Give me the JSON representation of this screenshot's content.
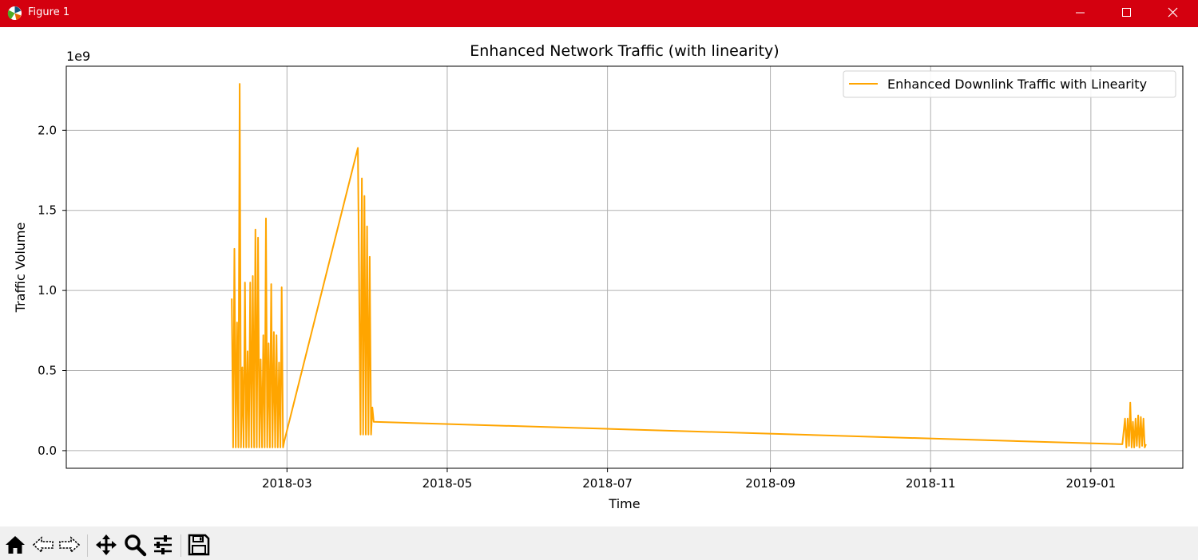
{
  "window": {
    "title": "Figure 1",
    "colors": {
      "titlebar": "#d4000f",
      "toolbar": "#f0f0f0"
    }
  },
  "toolbar": {
    "buttons": [
      {
        "name": "home-button",
        "icon": "home-icon"
      },
      {
        "name": "back-button",
        "icon": "back-arrow-icon"
      },
      {
        "name": "forward-button",
        "icon": "forward-arrow-icon"
      },
      {
        "name": "pan-button",
        "icon": "move-icon"
      },
      {
        "name": "zoom-button",
        "icon": "magnifier-icon"
      },
      {
        "name": "configure-subplots-button",
        "icon": "sliders-icon"
      },
      {
        "name": "save-button",
        "icon": "floppy-disk-icon"
      }
    ]
  },
  "chart_data": {
    "type": "line",
    "title": "Enhanced Network Traffic (with linearity)",
    "xlabel": "Time",
    "ylabel": "Traffic Volume",
    "y_offset_label": "1e9",
    "xlim": [
      "2017-12-07",
      "2019-02-05"
    ],
    "ylim": [
      -0.11,
      2.4
    ],
    "x_ticks": [
      {
        "date": "2018-03-01",
        "label": "2018-03"
      },
      {
        "date": "2018-05-01",
        "label": "2018-05"
      },
      {
        "date": "2018-07-01",
        "label": "2018-07"
      },
      {
        "date": "2018-09-01",
        "label": "2018-09"
      },
      {
        "date": "2018-11-01",
        "label": "2018-11"
      },
      {
        "date": "2019-01-01",
        "label": "2019-01"
      }
    ],
    "y_ticks": [
      {
        "value": 0.0,
        "label": "0.0"
      },
      {
        "value": 0.5,
        "label": "0.5"
      },
      {
        "value": 1.0,
        "label": "1.0"
      },
      {
        "value": 1.5,
        "label": "1.5"
      },
      {
        "value": 2.0,
        "label": "2.0"
      }
    ],
    "grid": true,
    "legend_position": "upper right",
    "series": [
      {
        "name": "Enhanced Downlink Traffic with Linearity",
        "color": "#ffa500",
        "x": [
          "2018-02-08",
          "2018-02-08",
          "2018-02-09",
          "2018-02-09",
          "2018-02-10",
          "2018-02-10",
          "2018-02-11",
          "2018-02-11",
          "2018-02-12",
          "2018-02-12",
          "2018-02-13",
          "2018-02-13",
          "2018-02-14",
          "2018-02-14",
          "2018-02-15",
          "2018-02-15",
          "2018-02-16",
          "2018-02-16",
          "2018-02-17",
          "2018-02-17",
          "2018-02-18",
          "2018-02-18",
          "2018-02-19",
          "2018-02-19",
          "2018-02-20",
          "2018-02-20",
          "2018-02-21",
          "2018-02-21",
          "2018-02-22",
          "2018-02-22",
          "2018-02-23",
          "2018-02-23",
          "2018-02-24",
          "2018-02-24",
          "2018-02-25",
          "2018-02-25",
          "2018-02-26",
          "2018-02-26",
          "2018-02-27",
          "2018-02-27",
          "2018-02-28",
          "2018-03-28",
          "2018-03-29",
          "2018-03-29",
          "2018-03-30",
          "2018-03-30",
          "2018-03-31",
          "2018-03-31",
          "2018-04-01",
          "2018-04-01",
          "2018-04-02",
          "2018-04-02",
          "2018-04-03",
          "2019-01-13",
          "2019-01-14",
          "2019-01-14",
          "2019-01-15",
          "2019-01-15",
          "2019-01-16",
          "2019-01-16",
          "2019-01-17",
          "2019-01-17",
          "2019-01-18",
          "2019-01-18",
          "2019-01-19",
          "2019-01-19",
          "2019-01-20",
          "2019-01-20",
          "2019-01-21",
          "2019-01-21",
          "2019-01-22"
        ],
        "y": [
          0.95,
          0.02,
          1.26,
          0.02,
          0.8,
          0.02,
          2.29,
          0.02,
          0.52,
          0.02,
          1.05,
          0.02,
          0.62,
          0.02,
          1.05,
          0.02,
          1.09,
          0.02,
          1.38,
          0.02,
          1.33,
          0.02,
          0.57,
          0.02,
          0.72,
          0.02,
          1.45,
          0.02,
          0.67,
          0.02,
          1.04,
          0.02,
          0.74,
          0.02,
          0.72,
          0.02,
          0.55,
          0.02,
          1.02,
          0.02,
          0.06,
          1.89,
          0.1,
          1.7,
          0.1,
          1.59,
          0.1,
          1.4,
          0.1,
          1.21,
          0.1,
          0.27,
          0.18,
          0.04,
          0.2,
          0.02,
          0.2,
          0.03,
          0.3,
          0.02,
          0.18,
          0.02,
          0.2,
          0.03,
          0.22,
          0.02,
          0.21,
          0.03,
          0.2,
          0.02,
          0.04
        ]
      }
    ]
  }
}
